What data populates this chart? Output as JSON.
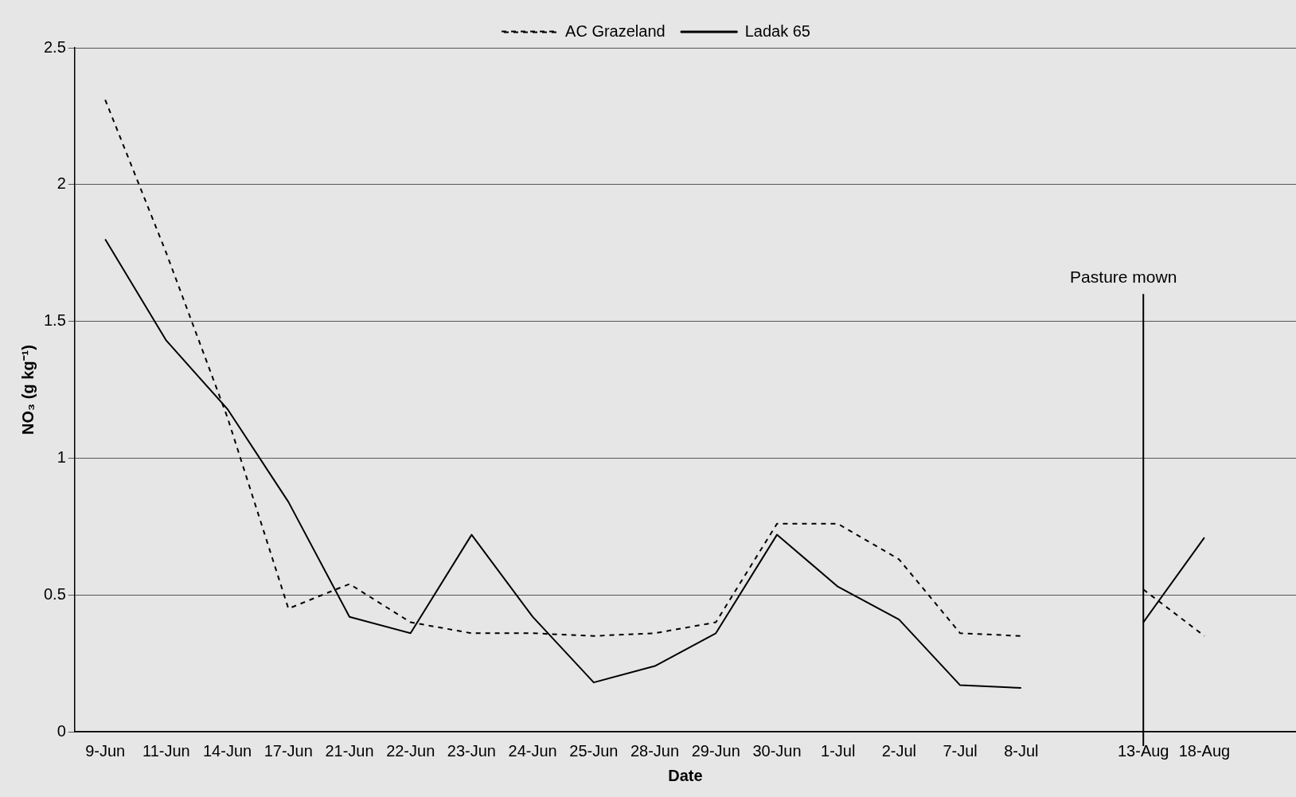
{
  "chart_data": {
    "type": "line",
    "xlabel": "Date",
    "ylabel": "NO₃ (g kg⁻¹)",
    "categories": [
      "9-Jun",
      "11-Jun",
      "14-Jun",
      "17-Jun",
      "21-Jun",
      "22-Jun",
      "23-Jun",
      "24-Jun",
      "25-Jun",
      "28-Jun",
      "29-Jun",
      "30-Jun",
      "1-Jul",
      "2-Jul",
      "7-Jul",
      "8-Jul",
      null,
      "13-Aug",
      "18-Aug",
      null
    ],
    "series": [
      {
        "name": "AC Grazeland",
        "color": "#000000",
        "line_style": "dashed",
        "values": [
          2.31,
          1.75,
          1.15,
          0.45,
          0.54,
          0.4,
          0.36,
          0.36,
          0.35,
          0.36,
          0.4,
          0.76,
          0.76,
          0.63,
          0.36,
          0.35,
          null,
          0.52,
          0.35,
          null
        ]
      },
      {
        "name": "Ladak 65",
        "color": "#000000",
        "line_style": "solid",
        "values": [
          1.8,
          1.43,
          1.18,
          0.84,
          0.42,
          0.36,
          0.72,
          0.42,
          0.18,
          0.24,
          0.36,
          0.72,
          0.53,
          0.41,
          0.17,
          0.16,
          null,
          0.4,
          0.71,
          null
        ]
      }
    ],
    "ylim": [
      0,
      2.5
    ],
    "yticks": [
      0,
      0.5,
      1,
      1.5,
      2,
      2.5
    ],
    "grid": "y",
    "legend": "top",
    "marker": "none",
    "ref_lines": [
      {
        "axis": "x",
        "value": "13-Aug",
        "label": "Pasture mown",
        "color": "#000000"
      }
    ]
  }
}
